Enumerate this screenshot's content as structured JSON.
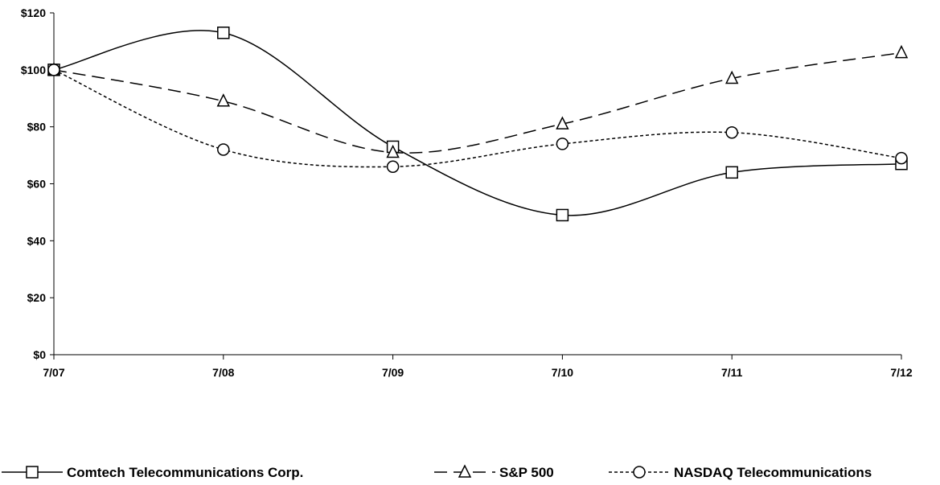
{
  "chart_data": {
    "type": "line",
    "title": "",
    "xlabel": "",
    "ylabel": "",
    "categories": [
      "7/07",
      "7/08",
      "7/09",
      "7/10",
      "7/11",
      "7/12"
    ],
    "ylim": [
      0,
      120
    ],
    "yticks": [
      0,
      20,
      40,
      60,
      80,
      100,
      120
    ],
    "ytick_labels": [
      "$0",
      "$20",
      "$40",
      "$60",
      "$80",
      "$100",
      "$120"
    ],
    "grid": false,
    "legend_position": "bottom",
    "series": [
      {
        "name": "Comtech Telecommunications Corp.",
        "values": [
          100,
          113,
          73,
          49,
          64,
          67
        ],
        "marker": "square",
        "line_style": "solid",
        "color": "#000000"
      },
      {
        "name": "S&P 500",
        "values": [
          100,
          89,
          71,
          81,
          97,
          106
        ],
        "marker": "triangle",
        "line_style": "dashed",
        "color": "#000000"
      },
      {
        "name": "NASDAQ Telecommunications",
        "values": [
          100,
          72,
          66,
          74,
          78,
          69
        ],
        "marker": "circle",
        "line_style": "dotted",
        "color": "#000000"
      }
    ]
  }
}
